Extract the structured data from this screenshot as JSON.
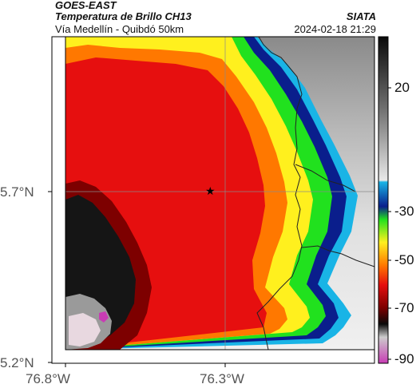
{
  "header": {
    "source": "GOES-EAST",
    "product": "Temperatura de Brillo CH13",
    "region": "Vía Medellín - Quibdó 50km",
    "org": "SIATA",
    "datetime": "2024-02-18 21:29"
  },
  "axes": {
    "lat_ticks": [
      "5.7°N",
      "5.2°N"
    ],
    "lon_ticks": [
      "76.8°W",
      "76.3°W"
    ]
  },
  "colorbar": {
    "ticks": [
      "20",
      "-30",
      "-50",
      "-70",
      "-90"
    ],
    "range": [
      -95,
      40
    ],
    "colors": {
      "warm_gray": "#e8e8e8",
      "mid_gray": "#808080",
      "cyan": "#19b4e6",
      "blue": "#0a1e8c",
      "green": "#21e11e",
      "yellow": "#fff01e",
      "orange": "#ff7800",
      "red": "#e60f0f",
      "dark_red": "#7d0000",
      "black": "#0a0a0a",
      "magenta": "#c83cb4"
    }
  },
  "marker": {
    "symbol": "★",
    "label": "star-marker"
  }
}
